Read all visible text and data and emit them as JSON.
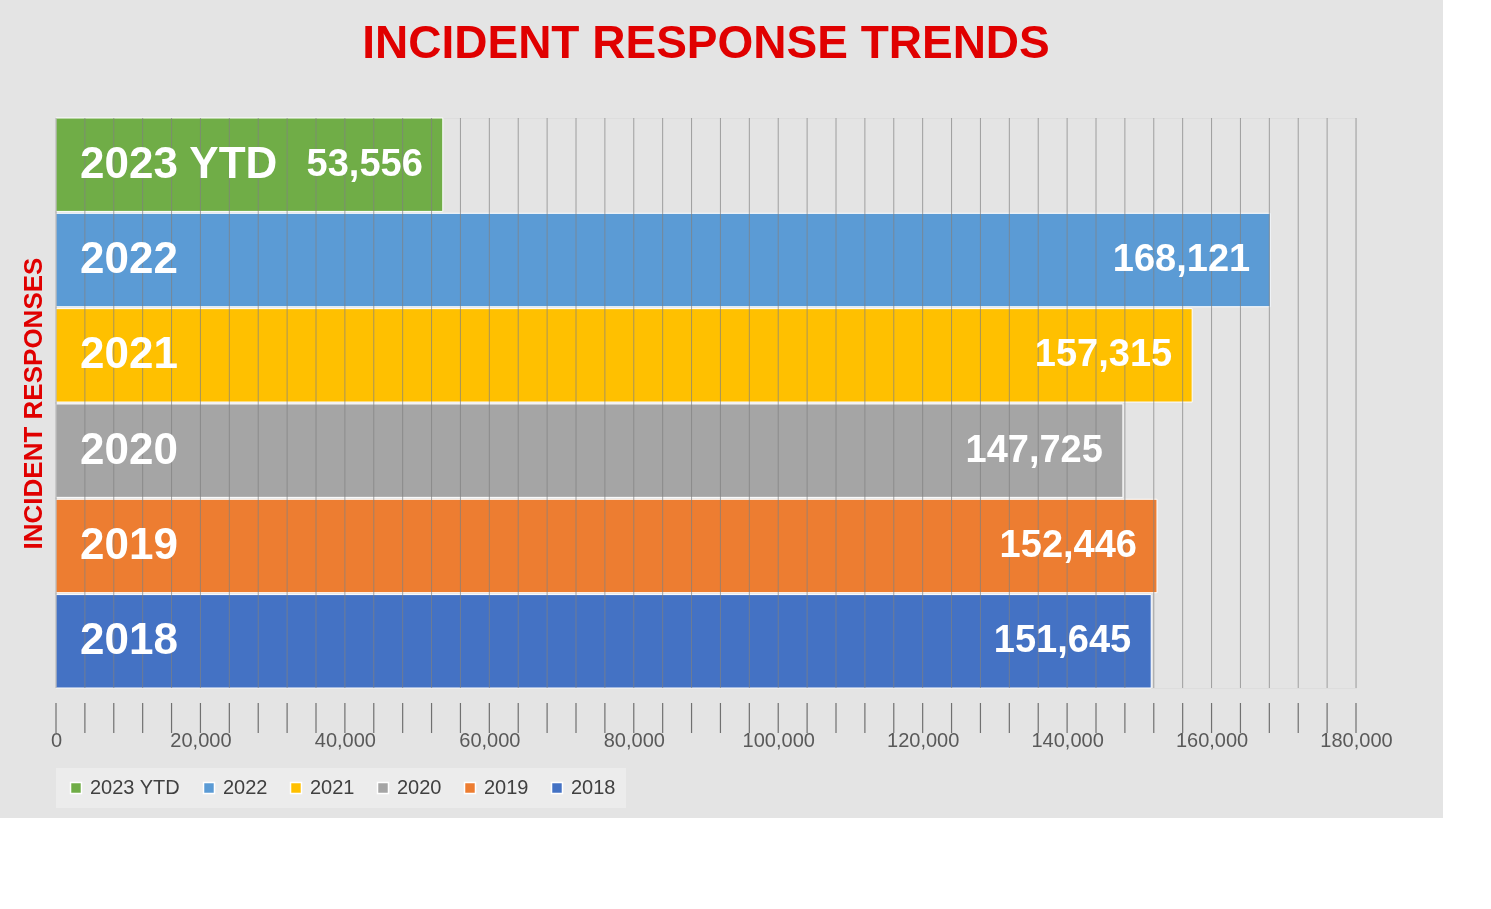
{
  "chart_data": {
    "type": "bar",
    "orientation": "horizontal",
    "title": "INCIDENT RESPONSE TRENDS",
    "ylabel": "INCIDENT RESPONSES",
    "categories": [
      null,
      null,
      null,
      null,
      null,
      null
    ],
    "series": [
      {
        "name": "2023 YTD",
        "color": "#70ad47",
        "values": [
          53556,
          null,
          null,
          null,
          null,
          null
        ],
        "value_labels": [
          "53,556",
          null,
          null,
          null,
          null,
          null
        ]
      },
      {
        "name": "2022",
        "color": "#5b9bd5",
        "values": [
          null,
          168121,
          null,
          null,
          null,
          null
        ],
        "value_labels": [
          null,
          "168,121",
          null,
          null,
          null,
          null
        ]
      },
      {
        "name": "2021",
        "color": "#ffc000",
        "values": [
          null,
          null,
          157315,
          null,
          null,
          null
        ],
        "value_labels": [
          null,
          null,
          "157,315",
          null,
          null,
          null
        ]
      },
      {
        "name": "2020",
        "color": "#a5a5a5",
        "values": [
          null,
          null,
          null,
          147725,
          null,
          null
        ],
        "value_labels": [
          null,
          null,
          null,
          "147,725",
          null,
          null
        ]
      },
      {
        "name": "2019",
        "color": "#ed7d31",
        "values": [
          null,
          null,
          null,
          null,
          152446,
          null
        ],
        "value_labels": [
          null,
          null,
          null,
          null,
          "152,446",
          null
        ]
      },
      {
        "name": "2018",
        "color": "#4472c4",
        "values": [
          null,
          null,
          null,
          null,
          null,
          151645
        ],
        "value_labels": [
          null,
          null,
          null,
          null,
          null,
          "151,645"
        ]
      }
    ],
    "xlim": [
      0,
      180000
    ],
    "xticks": [
      0,
      {
        "value": 4000,
        "label": null
      },
      {
        "value": 8000,
        "label": null
      },
      {
        "value": 12000,
        "label": null
      },
      {
        "value": 16000,
        "label": null
      },
      {
        "value": 20000,
        "label": "20,000"
      },
      {
        "value": 24000,
        "label": null
      },
      {
        "value": 28000,
        "label": null
      },
      {
        "value": 32000,
        "label": null
      },
      {
        "value": 36000,
        "label": null
      },
      {
        "value": 40000,
        "label": "40,000"
      },
      {
        "value": 44000,
        "label": null
      },
      {
        "value": 48000,
        "label": null
      },
      {
        "value": 52000,
        "label": null
      },
      {
        "value": 56000,
        "label": null
      },
      {
        "value": 60000,
        "label": "60,000"
      },
      {
        "value": 64000,
        "label": null
      },
      {
        "value": 68000,
        "label": null
      },
      {
        "value": 72000,
        "label": null
      },
      {
        "value": 76000,
        "label": null
      },
      {
        "value": 80000,
        "label": "80,000"
      },
      {
        "value": 84000,
        "label": null
      },
      {
        "value": 88000,
        "label": null
      },
      {
        "value": 92000,
        "label": null
      },
      {
        "value": 96000,
        "label": null
      },
      {
        "value": 100000,
        "label": "100,000"
      },
      {
        "value": 104000,
        "label": null
      },
      {
        "value": 108000,
        "label": null
      },
      {
        "value": 112000,
        "label": null
      },
      {
        "value": 116000,
        "label": null
      },
      {
        "value": 120000,
        "label": "120,000"
      },
      {
        "value": 124000,
        "label": null
      },
      {
        "value": 128000,
        "label": null
      },
      {
        "value": 132000,
        "label": null
      },
      {
        "value": 136000,
        "label": null
      },
      {
        "value": 140000,
        "label": "140,000"
      },
      {
        "value": 144000,
        "label": null
      },
      {
        "value": 148000,
        "label": null
      },
      {
        "value": 152000,
        "label": null
      },
      {
        "value": 156000,
        "label": null
      },
      {
        "value": 160000,
        "label": "160,000"
      },
      {
        "value": 164000,
        "label": null
      },
      {
        "value": 168000,
        "label": null
      },
      {
        "value": 172000,
        "label": null
      },
      {
        "value": 176000,
        "label": null
      },
      {
        "value": 180000,
        "label": "180,000"
      }
    ],
    "grid": "x",
    "legend": "bottom",
    "tick_labels": "x"
  }
}
